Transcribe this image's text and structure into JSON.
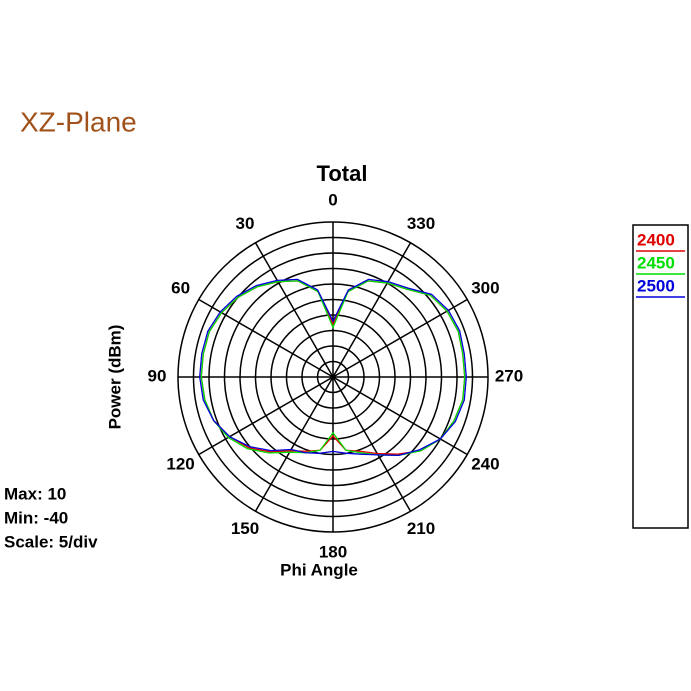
{
  "chart_data": {
    "type": "polar",
    "heading": "XZ-Plane",
    "title": "Total",
    "r_label": "Power  (dBm)",
    "theta_label": "Phi Angle",
    "info": [
      "Max: 10",
      "Min: -40",
      "Scale: 5/div"
    ],
    "rlim": [
      -40,
      10
    ],
    "rticks": [
      -40,
      -35,
      -30,
      -25,
      -20,
      -15,
      -10,
      -5,
      0,
      5,
      10
    ],
    "thetaticks": [
      0,
      30,
      60,
      90,
      120,
      150,
      180,
      210,
      240,
      270,
      300,
      330
    ],
    "theta": [
      0,
      10,
      20,
      30,
      40,
      50,
      60,
      70,
      80,
      90,
      100,
      110,
      120,
      130,
      140,
      150,
      160,
      170,
      180,
      190,
      200,
      210,
      220,
      230,
      240,
      250,
      260,
      270,
      280,
      290,
      300,
      310,
      320,
      330,
      340,
      350
    ],
    "series": [
      {
        "name": "2400",
        "color": "#e00000",
        "values": [
          -23,
          -12,
          -7,
          -4.5,
          -2,
          0,
          1.5,
          2.5,
          2.5,
          2.5,
          2,
          1,
          -1.5,
          -4.5,
          -8.5,
          -12.5,
          -14.5,
          -16,
          -21,
          -16,
          -14.5,
          -11.5,
          -7.5,
          -3,
          0,
          1.5,
          2.5,
          2.5,
          2.5,
          3,
          2.5,
          1,
          -3,
          -5,
          -7,
          -12
        ]
      },
      {
        "name": "2450",
        "color": "#00dd00",
        "values": [
          -24,
          -12,
          -7,
          -4.5,
          -2,
          0,
          1.5,
          2.5,
          2.5,
          2.5,
          2,
          1,
          -1,
          -4,
          -8,
          -12,
          -14,
          -16,
          -22,
          -16,
          -14,
          -11,
          -7,
          -3,
          0,
          1.5,
          2.5,
          2.5,
          2.5,
          3,
          2.5,
          1,
          -3,
          -5,
          -7,
          -12
        ]
      },
      {
        "name": "2500",
        "color": "#0000dd",
        "values": [
          -22,
          -11.5,
          -6.5,
          -4,
          -1.5,
          0.5,
          2,
          3,
          3,
          3,
          2.5,
          1,
          -1.5,
          -5,
          -9,
          -13,
          -14,
          -15,
          -16,
          -15,
          -13.5,
          -11,
          -7,
          -3.5,
          0,
          2,
          3,
          3,
          3,
          3.5,
          3,
          1.5,
          -2.5,
          -4.5,
          -6.5,
          -11.5
        ]
      }
    ]
  }
}
